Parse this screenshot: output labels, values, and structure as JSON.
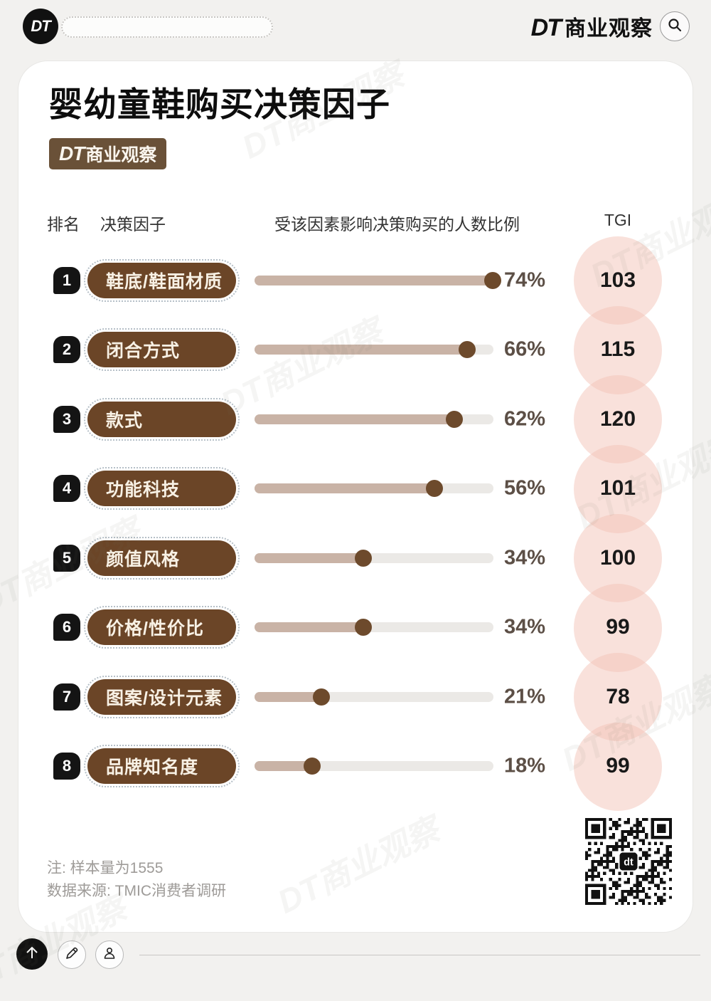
{
  "brand": {
    "logo_short": "DT",
    "name": "商业观察",
    "watermark": "DT商业观察"
  },
  "header": {
    "badge_dt": "DT",
    "badge_name": "商业观察"
  },
  "card": {
    "title": "婴幼童鞋购买决策因子",
    "badge_dt": "DT",
    "badge_rest": "商业观察",
    "columns": {
      "rank": "排名",
      "factor": "决策因子",
      "bar": "受该因素影响决策购买的人数比例",
      "tgi": "TGI"
    },
    "rows": [
      {
        "rank": "1",
        "factor": "鞋底/鞋面材质",
        "percent": 74,
        "percent_label": "74%",
        "tgi": "103"
      },
      {
        "rank": "2",
        "factor": "闭合方式",
        "percent": 66,
        "percent_label": "66%",
        "tgi": "115"
      },
      {
        "rank": "3",
        "factor": "款式",
        "percent": 62,
        "percent_label": "62%",
        "tgi": "120"
      },
      {
        "rank": "4",
        "factor": "功能科技",
        "percent": 56,
        "percent_label": "56%",
        "tgi": "101"
      },
      {
        "rank": "5",
        "factor": "颜值风格",
        "percent": 34,
        "percent_label": "34%",
        "tgi": "100"
      },
      {
        "rank": "6",
        "factor": "价格/性价比",
        "percent": 34,
        "percent_label": "34%",
        "tgi": "99"
      },
      {
        "rank": "7",
        "factor": "图案/设计元素",
        "percent": 21,
        "percent_label": "21%",
        "tgi": "78"
      },
      {
        "rank": "8",
        "factor": "品牌知名度",
        "percent": 18,
        "percent_label": "18%",
        "tgi": "99"
      }
    ],
    "notes": {
      "line1": "注: 样本量为1555",
      "line2": "数据来源: TMIC消费者调研"
    },
    "qr_center_label": "dt"
  },
  "colors": {
    "pill_brown": "#6b4527",
    "badge_brown": "#6a5138",
    "bar_fill": "#c9b3a6",
    "bar_track": "#ebe9e6",
    "bar_dot": "#6d4a2c",
    "percent_text": "#5c4f46",
    "tgi_circle_pink": "#f4c4b7",
    "rank_badge_black": "#141414"
  },
  "chart_data": {
    "type": "bar",
    "orientation": "horizontal",
    "title": "婴幼童鞋购买决策因子",
    "categories": [
      "鞋底/鞋面材质",
      "闭合方式",
      "款式",
      "功能科技",
      "颜值风格",
      "价格/性价比",
      "图案/设计元素",
      "品牌知名度"
    ],
    "series": [
      {
        "name": "受该因素影响决策购买的人数比例",
        "unit": "%",
        "values": [
          74,
          66,
          62,
          56,
          34,
          34,
          21,
          18
        ]
      },
      {
        "name": "TGI",
        "values": [
          103,
          115,
          120,
          101,
          100,
          99,
          78,
          99
        ]
      }
    ],
    "bar_scale_max": 74,
    "grid": false,
    "legend": false,
    "note": "注: 样本量为1555",
    "source": "数据来源: TMIC消费者调研"
  }
}
